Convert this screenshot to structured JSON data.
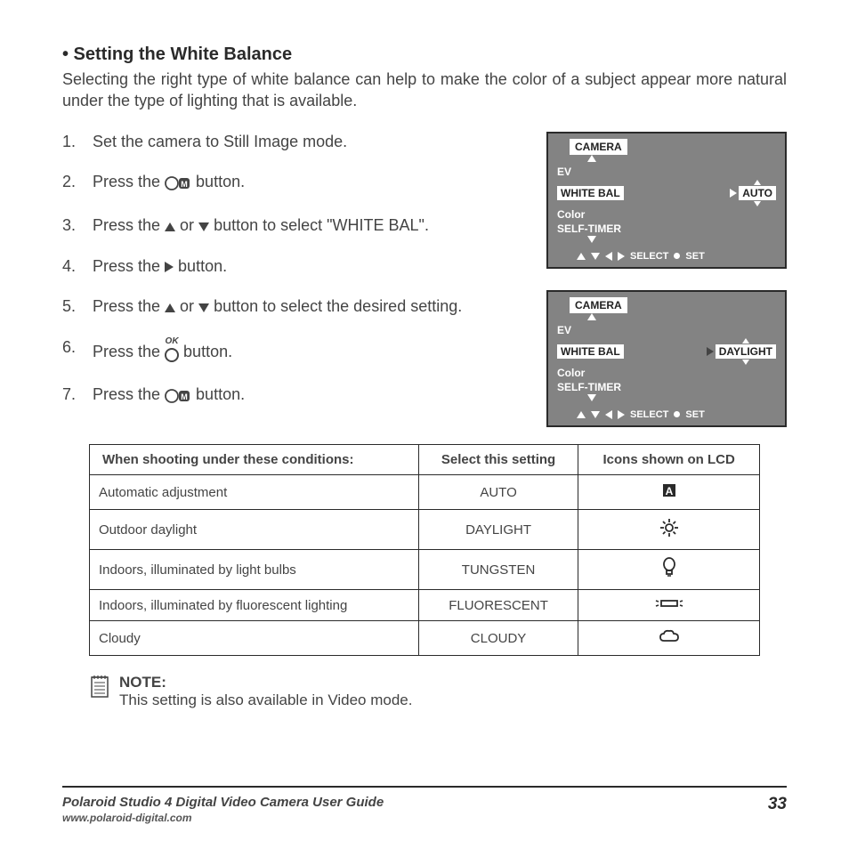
{
  "heading": "• Setting the White Balance",
  "intro": "Selecting the right type of white balance can help to make the color of a subject appear more natural under the type of lighting that is available.",
  "steps": {
    "s1": "Set the camera to Still Image mode.",
    "s2a": "Press the ",
    "s2b": " button.",
    "s3a": "Press the ",
    "s3b": " or ",
    "s3c": " button to select \"WHITE BAL\".",
    "s4a": "Press the ",
    "s4b": " button.",
    "s5a": "Press the ",
    "s5b": " or ",
    "s5c": " button to select the desired setting.",
    "s6a": "Press the ",
    "s6b": " button.",
    "s6ok": "OK",
    "s7a": "Press the ",
    "s7b": " button."
  },
  "lcd": {
    "camera": "CAMERA",
    "ev": "EV",
    "whitebal": "WHITE BAL",
    "color": "Color",
    "selftimer": "SELF-TIMER",
    "auto": "AUTO",
    "daylight": "DAYLIGHT",
    "select": "SELECT",
    "set": "SET"
  },
  "table": {
    "h1": "When shooting under these conditions:",
    "h2": "Select this setting",
    "h3": "Icons shown on LCD",
    "rows": [
      {
        "cond": "Automatic adjustment",
        "set": "AUTO",
        "icon": "auto"
      },
      {
        "cond": "Outdoor daylight",
        "set": "DAYLIGHT",
        "icon": "sun"
      },
      {
        "cond": "Indoors, illuminated by light bulbs",
        "set": "TUNGSTEN",
        "icon": "bulb"
      },
      {
        "cond": "Indoors, illuminated by fluorescent lighting",
        "set": "FLUORESCENT",
        "icon": "fluor"
      },
      {
        "cond": "Cloudy",
        "set": "CLOUDY",
        "icon": "cloud"
      }
    ]
  },
  "note": {
    "label": "NOTE:",
    "text": "This setting is also available in Video mode."
  },
  "footer": {
    "title": "Polaroid Studio 4 Digital Video Camera User Guide",
    "url": "www.polaroid-digital.com",
    "page": "33"
  }
}
